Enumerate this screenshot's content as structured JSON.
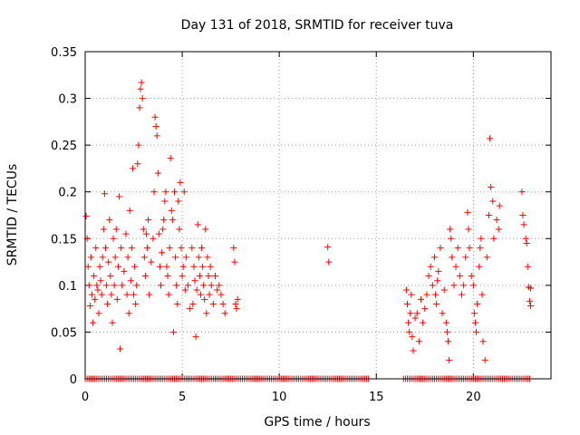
{
  "chart_data": {
    "type": "scatter",
    "title": "Day 131 of 2018, SRMTID for receiver tuva",
    "xlabel": "GPS time / hours",
    "ylabel": "SRMTID / TECUs",
    "xlim": [
      0,
      24
    ],
    "ylim": [
      0,
      0.35
    ],
    "x_ticks": [
      0,
      5,
      10,
      15,
      20
    ],
    "y_ticks": [
      0,
      0.05,
      0.1,
      0.15,
      0.2,
      0.25,
      0.3,
      0.35
    ],
    "x_tick_labels": [
      "0",
      "5",
      "10",
      "15",
      "20"
    ],
    "y_tick_labels": [
      "0",
      "0.05",
      "0.1",
      "0.15",
      "0.2",
      "0.25",
      "0.3",
      "0.35"
    ],
    "grid": true,
    "marker": "+",
    "color": "#ff0000",
    "series": [
      {
        "name": "SRMTID",
        "points": [
          [
            0.05,
            0.174
          ],
          [
            0.1,
            0.15
          ],
          [
            0.15,
            0.12
          ],
          [
            0.2,
            0.1
          ],
          [
            0.25,
            0.078
          ],
          [
            0.3,
            0.13
          ],
          [
            0.35,
            0.09
          ],
          [
            0.4,
            0.06
          ],
          [
            0.45,
            0.11
          ],
          [
            0.5,
            0.085
          ],
          [
            0.55,
            0.14
          ],
          [
            0.6,
            0.1
          ],
          [
            0.65,
            0.095
          ],
          [
            0.7,
            0.07
          ],
          [
            0.75,
            0.12
          ],
          [
            0.8,
            0.105
          ],
          [
            0.85,
            0.09
          ],
          [
            0.9,
            0.13
          ],
          [
            0.95,
            0.16
          ],
          [
            1.0,
            0.198
          ],
          [
            1.05,
            0.14
          ],
          [
            1.1,
            0.1
          ],
          [
            1.15,
            0.08
          ],
          [
            1.2,
            0.125
          ],
          [
            1.25,
            0.17
          ],
          [
            1.3,
            0.11
          ],
          [
            1.35,
            0.09
          ],
          [
            1.4,
            0.06
          ],
          [
            1.45,
            0.15
          ],
          [
            1.5,
            0.1
          ],
          [
            1.55,
            0.13
          ],
          [
            1.6,
            0.16
          ],
          [
            1.65,
            0.085
          ],
          [
            1.7,
            0.12
          ],
          [
            1.75,
            0.195
          ],
          [
            1.8,
            0.032
          ],
          [
            1.85,
            0.14
          ],
          [
            1.9,
            0.1
          ],
          [
            2.0,
            0.115
          ],
          [
            2.1,
            0.155
          ],
          [
            2.15,
            0.09
          ],
          [
            2.2,
            0.13
          ],
          [
            2.25,
            0.07
          ],
          [
            2.3,
            0.18
          ],
          [
            2.35,
            0.105
          ],
          [
            2.4,
            0.14
          ],
          [
            2.45,
            0.225
          ],
          [
            2.5,
            0.09
          ],
          [
            2.55,
            0.12
          ],
          [
            2.6,
            0.08
          ],
          [
            2.65,
            0.1
          ],
          [
            2.7,
            0.23
          ],
          [
            2.75,
            0.25
          ],
          [
            2.8,
            0.29
          ],
          [
            2.85,
            0.31
          ],
          [
            2.9,
            0.317
          ],
          [
            2.95,
            0.3
          ],
          [
            3.0,
            0.16
          ],
          [
            3.05,
            0.13
          ],
          [
            3.1,
            0.11
          ],
          [
            3.15,
            0.155
          ],
          [
            3.2,
            0.14
          ],
          [
            3.25,
            0.17
          ],
          [
            3.3,
            0.09
          ],
          [
            3.4,
            0.125
          ],
          [
            3.5,
            0.15
          ],
          [
            3.55,
            0.2
          ],
          [
            3.6,
            0.28
          ],
          [
            3.65,
            0.27
          ],
          [
            3.7,
            0.26
          ],
          [
            3.75,
            0.22
          ],
          [
            3.8,
            0.155
          ],
          [
            3.85,
            0.12
          ],
          [
            3.9,
            0.1
          ],
          [
            3.95,
            0.135
          ],
          [
            4.0,
            0.16
          ],
          [
            4.05,
            0.17
          ],
          [
            4.1,
            0.19
          ],
          [
            4.15,
            0.2
          ],
          [
            4.2,
            0.12
          ],
          [
            4.25,
            0.11
          ],
          [
            4.3,
            0.09
          ],
          [
            4.35,
            0.14
          ],
          [
            4.4,
            0.236
          ],
          [
            4.45,
            0.18
          ],
          [
            4.5,
            0.17
          ],
          [
            4.55,
            0.05
          ],
          [
            4.6,
            0.2
          ],
          [
            4.65,
            0.13
          ],
          [
            4.7,
            0.1
          ],
          [
            4.75,
            0.08
          ],
          [
            4.8,
            0.19
          ],
          [
            4.85,
            0.16
          ],
          [
            4.9,
            0.21
          ],
          [
            4.95,
            0.14
          ],
          [
            5.0,
            0.11
          ],
          [
            5.05,
            0.12
          ],
          [
            5.1,
            0.2
          ],
          [
            5.15,
            0.095
          ],
          [
            5.2,
            0.13
          ],
          [
            5.3,
            0.1
          ],
          [
            5.4,
            0.075
          ],
          [
            5.5,
            0.14
          ],
          [
            5.55,
            0.08
          ],
          [
            5.6,
            0.12
          ],
          [
            5.65,
            0.105
          ],
          [
            5.7,
            0.045
          ],
          [
            5.75,
            0.095
          ],
          [
            5.8,
            0.165
          ],
          [
            5.85,
            0.13
          ],
          [
            5.9,
            0.11
          ],
          [
            5.95,
            0.09
          ],
          [
            6.0,
            0.14
          ],
          [
            6.05,
            0.12
          ],
          [
            6.1,
            0.1
          ],
          [
            6.15,
            0.085
          ],
          [
            6.2,
            0.16
          ],
          [
            6.25,
            0.07
          ],
          [
            6.3,
            0.13
          ],
          [
            6.35,
            0.11
          ],
          [
            6.4,
            0.09
          ],
          [
            6.45,
            0.12
          ],
          [
            6.5,
            0.1
          ],
          [
            6.6,
            0.08
          ],
          [
            6.7,
            0.11
          ],
          [
            6.8,
            0.095
          ],
          [
            6.9,
            0.1
          ],
          [
            7.0,
            0.09
          ],
          [
            7.1,
            0.08
          ],
          [
            7.2,
            0.07
          ],
          [
            7.65,
            0.14
          ],
          [
            7.7,
            0.125
          ],
          [
            7.75,
            0.08
          ],
          [
            7.8,
            0.075
          ],
          [
            7.85,
            0.085
          ],
          [
            12.5,
            0.141
          ],
          [
            12.55,
            0.125
          ],
          [
            16.55,
            0.095
          ],
          [
            16.6,
            0.08
          ],
          [
            16.65,
            0.06
          ],
          [
            16.7,
            0.05
          ],
          [
            16.75,
            0.07
          ],
          [
            16.8,
            0.09
          ],
          [
            16.85,
            0.045
          ],
          [
            16.9,
            0.03
          ],
          [
            17.0,
            0.065
          ],
          [
            17.1,
            0.07
          ],
          [
            17.2,
            0.04
          ],
          [
            17.3,
            0.085
          ],
          [
            17.4,
            0.06
          ],
          [
            17.5,
            0.075
          ],
          [
            17.6,
            0.09
          ],
          [
            17.7,
            0.11
          ],
          [
            17.8,
            0.12
          ],
          [
            17.9,
            0.1
          ],
          [
            18.0,
            0.13
          ],
          [
            18.05,
            0.09
          ],
          [
            18.1,
            0.08
          ],
          [
            18.15,
            0.105
          ],
          [
            18.2,
            0.115
          ],
          [
            18.3,
            0.14
          ],
          [
            18.4,
            0.07
          ],
          [
            18.5,
            0.095
          ],
          [
            18.6,
            0.06
          ],
          [
            18.65,
            0.05
          ],
          [
            18.7,
            0.04
          ],
          [
            18.75,
            0.02
          ],
          [
            18.8,
            0.16
          ],
          [
            18.85,
            0.15
          ],
          [
            18.9,
            0.13
          ],
          [
            19.0,
            0.1
          ],
          [
            19.1,
            0.12
          ],
          [
            19.2,
            0.14
          ],
          [
            19.3,
            0.11
          ],
          [
            19.4,
            0.09
          ],
          [
            19.5,
            0.1
          ],
          [
            19.6,
            0.13
          ],
          [
            19.7,
            0.178
          ],
          [
            19.75,
            0.16
          ],
          [
            19.8,
            0.14
          ],
          [
            19.9,
            0.11
          ],
          [
            20.0,
            0.1
          ],
          [
            20.05,
            0.07
          ],
          [
            20.1,
            0.06
          ],
          [
            20.15,
            0.05
          ],
          [
            20.2,
            0.08
          ],
          [
            20.3,
            0.12
          ],
          [
            20.35,
            0.14
          ],
          [
            20.4,
            0.15
          ],
          [
            20.45,
            0.09
          ],
          [
            20.5,
            0.04
          ],
          [
            20.6,
            0.02
          ],
          [
            20.7,
            0.13
          ],
          [
            20.8,
            0.175
          ],
          [
            20.85,
            0.257
          ],
          [
            20.9,
            0.205
          ],
          [
            21.0,
            0.19
          ],
          [
            21.05,
            0.15
          ],
          [
            21.2,
            0.17
          ],
          [
            21.3,
            0.16
          ],
          [
            21.35,
            0.185
          ],
          [
            22.5,
            0.2
          ],
          [
            22.55,
            0.175
          ],
          [
            22.6,
            0.165
          ],
          [
            22.7,
            0.15
          ],
          [
            22.75,
            0.145
          ],
          [
            22.8,
            0.12
          ],
          [
            22.85,
            0.098
          ],
          [
            22.9,
            0.083
          ],
          [
            22.95,
            0.078
          ],
          [
            22.95,
            0.097
          ]
        ]
      }
    ],
    "zero_bands": [
      [
        0,
        14.6
      ],
      [
        16.4,
        22.9
      ]
    ]
  }
}
